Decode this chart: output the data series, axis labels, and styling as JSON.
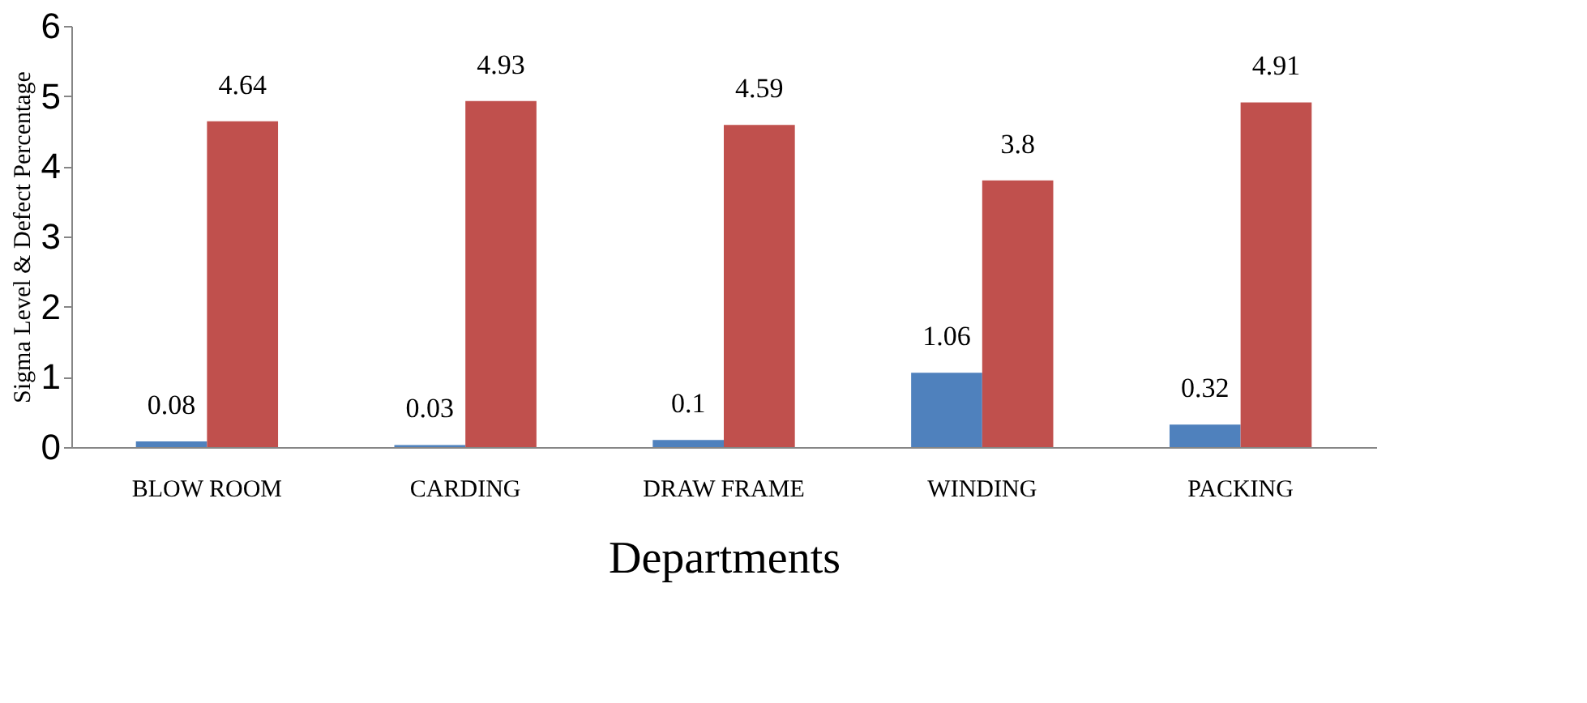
{
  "chart_data": {
    "type": "bar",
    "xlabel": "Departments",
    "ylabel": "Sigma Level & Defect Percentage",
    "categories": [
      "BLOW ROOM",
      "CARDING",
      "DRAW FRAME",
      "WINDING",
      "PACKING"
    ],
    "series": [
      {
        "color": "#4f81bd",
        "values": [
          0.08,
          0.03,
          0.1,
          1.06,
          0.32
        ]
      },
      {
        "color": "#c0504d",
        "values": [
          4.64,
          4.93,
          4.59,
          3.8,
          4.91
        ]
      }
    ],
    "ylim": [
      0,
      6
    ],
    "yticks": [
      0,
      1,
      2,
      3,
      4,
      5,
      6
    ],
    "grid": false,
    "legend": false,
    "data_labels": true
  }
}
